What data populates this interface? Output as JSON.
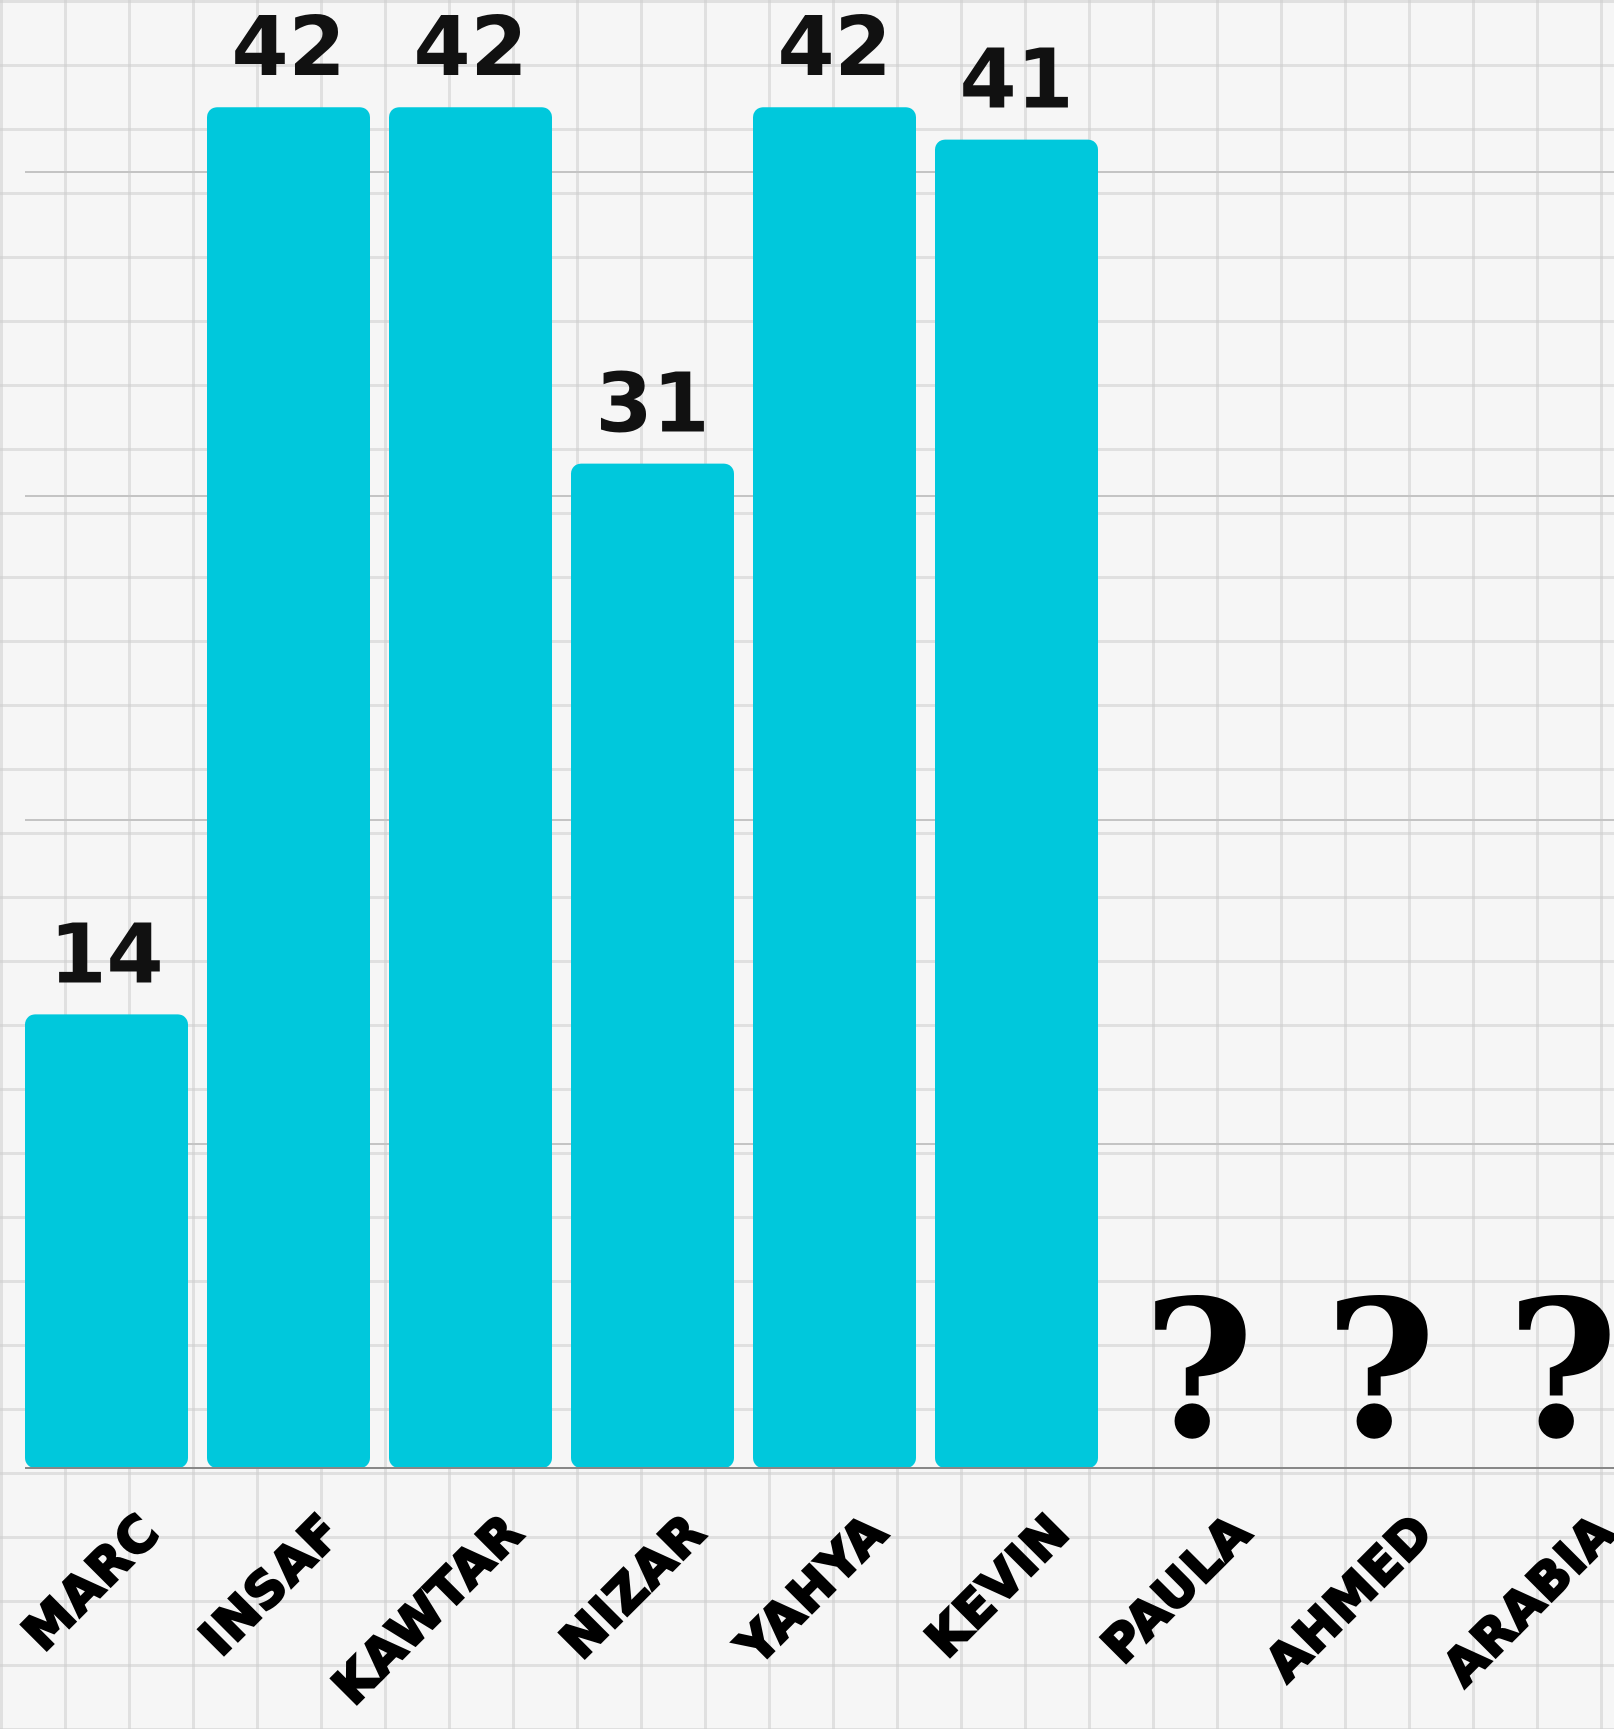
{
  "chart_data": {
    "type": "bar",
    "title": "",
    "xlabel": "",
    "ylabel": "",
    "categories": [
      "MARC",
      "INSAF",
      "KAWTAR",
      "NIZAR",
      "YAHYA",
      "KEVIN",
      "PAULA",
      "AHMED",
      "ARABIA"
    ],
    "values": [
      14,
      42,
      42,
      31,
      42,
      41,
      null,
      null,
      null
    ],
    "value_labels": [
      "14",
      "42",
      "42",
      "31",
      "42",
      "41",
      "?",
      "?",
      "?"
    ],
    "ylim": [
      0,
      45
    ],
    "gridlines": [
      10,
      20,
      30,
      40
    ],
    "grid": true,
    "legend": "none",
    "colors": {
      "bar": "#00c8dc",
      "gridline": "#c4c4c4",
      "axis": "#888888",
      "text": "#111111"
    }
  }
}
